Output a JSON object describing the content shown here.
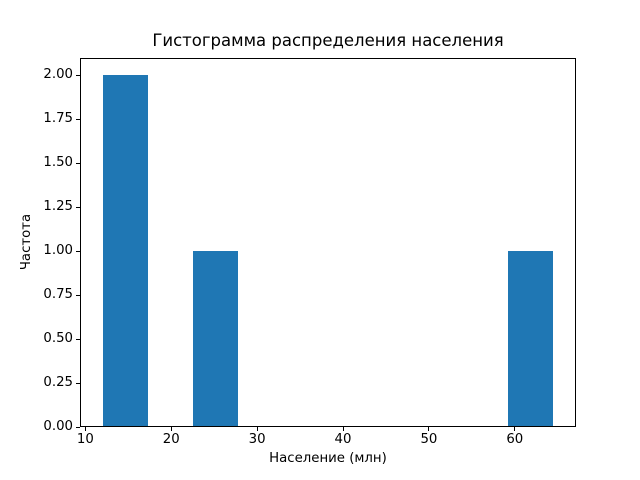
{
  "chart_data": {
    "type": "bar",
    "subtype": "histogram",
    "title": "Гистограмма распределения населения",
    "xlabel": "Население (млн)",
    "ylabel": "Частота",
    "bar_color": "#1f77b4",
    "background_color": "#ffffff",
    "grid": false,
    "legend": null,
    "xlim": [
      9.375,
      67.125
    ],
    "ylim": [
      0,
      2.1
    ],
    "x_ticks": [
      {
        "value": 10,
        "label": "10"
      },
      {
        "value": 20,
        "label": "20"
      },
      {
        "value": 30,
        "label": "30"
      },
      {
        "value": 40,
        "label": "40"
      },
      {
        "value": 50,
        "label": "50"
      },
      {
        "value": 60,
        "label": "60"
      }
    ],
    "y_ticks": [
      {
        "value": 0.0,
        "label": "0.00"
      },
      {
        "value": 0.25,
        "label": "0.25"
      },
      {
        "value": 0.5,
        "label": "0.50"
      },
      {
        "value": 0.75,
        "label": "0.75"
      },
      {
        "value": 1.0,
        "label": "1.00"
      },
      {
        "value": 1.25,
        "label": "1.25"
      },
      {
        "value": 1.5,
        "label": "1.50"
      },
      {
        "value": 1.75,
        "label": "1.75"
      },
      {
        "value": 2.0,
        "label": "2.00"
      }
    ],
    "bin_edges": [
      12,
      17.25,
      22.5,
      27.75,
      33,
      38.25,
      43.5,
      48.75,
      54,
      59.25,
      64.5
    ],
    "counts": [
      2,
      0,
      1,
      0,
      0,
      0,
      0,
      0,
      0,
      1
    ],
    "bars": [
      {
        "x0": 12.0,
        "x1": 17.25,
        "count": 2
      },
      {
        "x0": 22.5,
        "x1": 27.75,
        "count": 1
      },
      {
        "x0": 59.25,
        "x1": 64.5,
        "count": 1
      }
    ]
  }
}
